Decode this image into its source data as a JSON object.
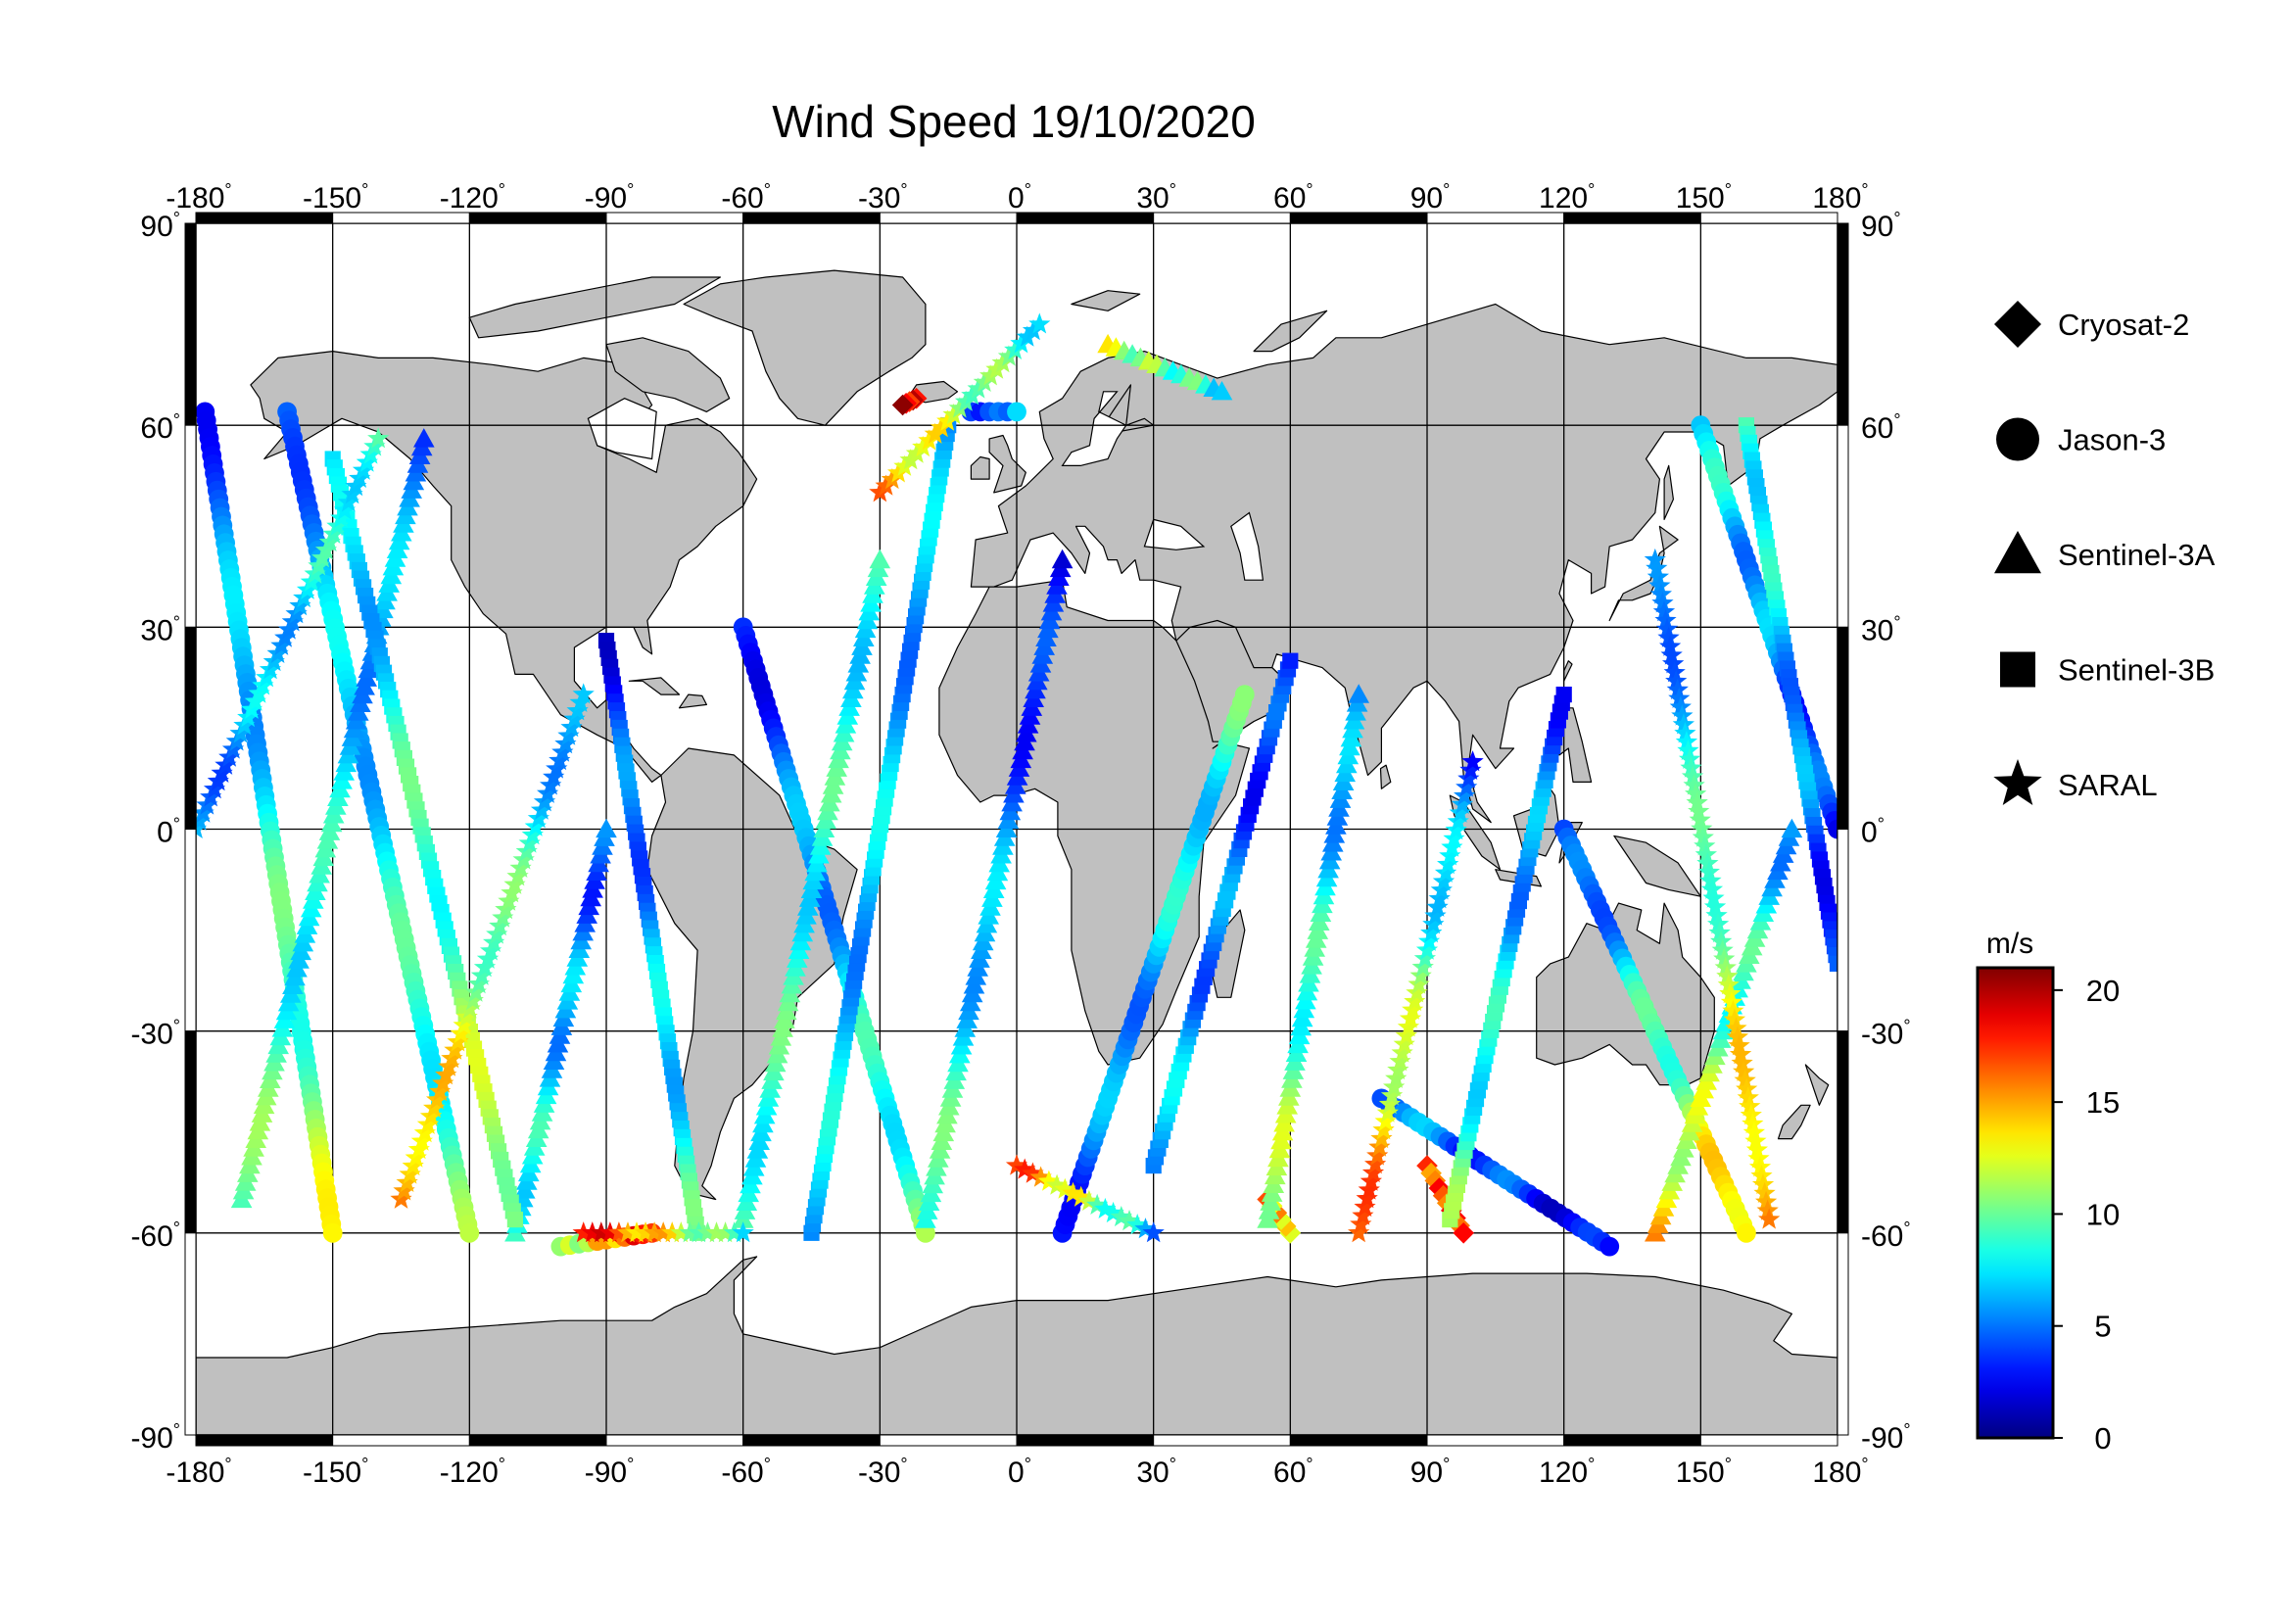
{
  "title": "Wind Speed 19/10/2020",
  "map": {
    "projection": "cylindrical equidistant",
    "lon_range": [
      -180,
      180
    ],
    "lat_range": [
      -90,
      90
    ],
    "lon_ticks": [
      "-180",
      "-150",
      "-120",
      "-90",
      "-60",
      "-30",
      "0",
      "30",
      "60",
      "90",
      "120",
      "150",
      "180"
    ],
    "lat_ticks": [
      "90",
      "60",
      "30",
      "0",
      "-30",
      "-60",
      "-90"
    ],
    "degree_symbol": "°",
    "land_color": "#c0c0c0",
    "ocean_color": "#ffffff",
    "grid": true
  },
  "legend": {
    "items": [
      {
        "label": "Cryosat-2",
        "marker": "diamond"
      },
      {
        "label": "Jason-3",
        "marker": "circle"
      },
      {
        "label": "Sentinel-3A",
        "marker": "triangle"
      },
      {
        "label": "Sentinel-3B",
        "marker": "square"
      },
      {
        "label": "SARAL",
        "marker": "star"
      }
    ]
  },
  "colorbar": {
    "unit": "m/s",
    "min": 0,
    "max": 21,
    "ticks": [
      "0",
      "5",
      "10",
      "15",
      "20"
    ],
    "colormap": "jet"
  },
  "chart_data": {
    "type": "scatter",
    "variable": "wind speed",
    "units": "m/s",
    "x_axis": "longitude",
    "y_axis": "latitude",
    "xlim": [
      -180,
      180
    ],
    "ylim": [
      -90,
      90
    ],
    "series": [
      {
        "name": "Cryosat-2",
        "marker": "diamond",
        "tracks": [
          {
            "lon0": 90,
            "lat0": -50,
            "lon1": 98,
            "lat1": -60,
            "speed0": 16,
            "speed1": 18
          },
          {
            "lon0": -22,
            "lat0": 64,
            "lon1": -25,
            "lat1": 63,
            "speed0": 18,
            "speed1": 19
          },
          {
            "lon0": 60,
            "lat0": -60,
            "lon1": 55,
            "lat1": -55,
            "speed0": 13,
            "speed1": 15
          }
        ]
      },
      {
        "name": "Jason-3",
        "marker": "circle",
        "tracks": [
          {
            "lon0": -178,
            "lat0": 62,
            "lon1": -150,
            "lat1": -60,
            "speed0": 4,
            "speed1": 12
          },
          {
            "lon0": -160,
            "lat0": 62,
            "lon1": -120,
            "lat1": -60,
            "speed0": 5,
            "speed1": 10
          },
          {
            "lon0": -100,
            "lat0": -62,
            "lon1": -80,
            "lat1": -60,
            "speed0": 10,
            "speed1": 19
          },
          {
            "lon0": -60,
            "lat0": 30,
            "lon1": -20,
            "lat1": -60,
            "speed0": 3,
            "speed1": 10
          },
          {
            "lon0": -10,
            "lat0": 62,
            "lon1": 0,
            "lat1": 62,
            "speed0": 3,
            "speed1": 6
          },
          {
            "lon0": 10,
            "lat0": -60,
            "lon1": 50,
            "lat1": 20,
            "speed0": 4,
            "speed1": 9
          },
          {
            "lon0": 80,
            "lat0": -40,
            "lon1": 130,
            "lat1": -62,
            "speed0": 6,
            "speed1": 2
          },
          {
            "lon0": 120,
            "lat0": 0,
            "lon1": 160,
            "lat1": -60,
            "speed0": 3,
            "speed1": 15
          },
          {
            "lon0": 150,
            "lat0": 60,
            "lon1": 180,
            "lat1": 0,
            "speed0": 8,
            "speed1": 3
          }
        ]
      },
      {
        "name": "Sentinel-3A",
        "marker": "triangle",
        "tracks": [
          {
            "lon0": -170,
            "lat0": -55,
            "lon1": -130,
            "lat1": 58,
            "speed0": 10,
            "speed1": 5
          },
          {
            "lon0": -110,
            "lat0": -60,
            "lon1": -90,
            "lat1": 0,
            "speed0": 9,
            "speed1": 4
          },
          {
            "lon0": -60,
            "lat0": -58,
            "lon1": -30,
            "lat1": 40,
            "speed0": 9,
            "speed1": 8
          },
          {
            "lon0": -20,
            "lat0": -58,
            "lon1": 10,
            "lat1": 40,
            "speed0": 10,
            "speed1": 2
          },
          {
            "lon0": 20,
            "lat0": 72,
            "lon1": 45,
            "lat1": 65,
            "speed0": 12,
            "speed1": 8
          },
          {
            "lon0": 55,
            "lat0": -58,
            "lon1": 75,
            "lat1": 20,
            "speed0": 12,
            "speed1": 5
          },
          {
            "lon0": 140,
            "lat0": -60,
            "lon1": 170,
            "lat1": 0,
            "speed0": 14,
            "speed1": 6
          }
        ]
      },
      {
        "name": "Sentinel-3B",
        "marker": "square",
        "tracks": [
          {
            "lon0": -150,
            "lat0": 55,
            "lon1": -110,
            "lat1": -58,
            "speed0": 6,
            "speed1": 12
          },
          {
            "lon0": -90,
            "lat0": 28,
            "lon1": -70,
            "lat1": -60,
            "speed0": 3,
            "speed1": 9
          },
          {
            "lon0": -45,
            "lat0": -60,
            "lon1": -15,
            "lat1": 60,
            "speed0": 7,
            "speed1": 6
          },
          {
            "lon0": 30,
            "lat0": -50,
            "lon1": 60,
            "lat1": 25,
            "speed0": 7,
            "speed1": 3
          },
          {
            "lon0": 95,
            "lat0": -58,
            "lon1": 120,
            "lat1": 20,
            "speed0": 10,
            "speed1": 4
          },
          {
            "lon0": 160,
            "lat0": 60,
            "lon1": 180,
            "lat1": -20,
            "speed0": 9,
            "speed1": 3
          }
        ]
      },
      {
        "name": "SARAL",
        "marker": "star",
        "tracks": [
          {
            "lon0": -180,
            "lat0": 0,
            "lon1": -140,
            "lat1": 58,
            "speed0": 5,
            "speed1": 9
          },
          {
            "lon0": -135,
            "lat0": -55,
            "lon1": -95,
            "lat1": 20,
            "speed0": 16,
            "speed1": 5
          },
          {
            "lon0": -95,
            "lat0": -60,
            "lon1": -60,
            "lat1": -60,
            "speed0": 19,
            "speed1": 8
          },
          {
            "lon0": -30,
            "lat0": 50,
            "lon1": 5,
            "lat1": 75,
            "speed0": 15,
            "speed1": 8
          },
          {
            "lon0": 0,
            "lat0": -50,
            "lon1": 30,
            "lat1": -60,
            "speed0": 17,
            "speed1": 6
          },
          {
            "lon0": 75,
            "lat0": -60,
            "lon1": 100,
            "lat1": 10,
            "speed0": 17,
            "speed1": 4
          },
          {
            "lon0": 140,
            "lat0": 40,
            "lon1": 165,
            "lat1": -58,
            "speed0": 4,
            "speed1": 16
          }
        ]
      }
    ]
  }
}
